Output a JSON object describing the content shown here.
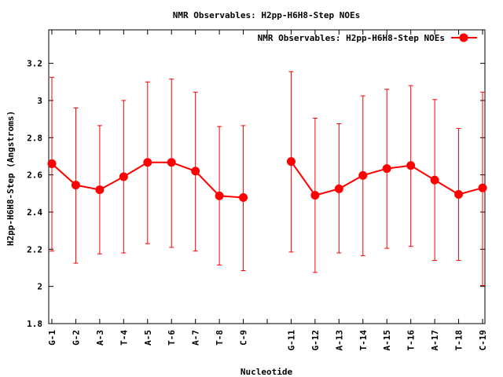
{
  "chart_data": {
    "type": "line",
    "title": "NMR Observables: H2pp-H6H8-Step NOEs",
    "xlabel": "Nucleotide",
    "ylabel": "H2pp-H6H8-Step (Angstroms)",
    "ylim": [
      1.8,
      3.38
    ],
    "yticks": [
      "1.8",
      "2",
      "2.2",
      "2.4",
      "2.6",
      "2.8",
      "3",
      "3.2"
    ],
    "grid": false,
    "legend_position": "top-right",
    "series_color": "#ff0000",
    "categories": [
      "G-1",
      "G-2",
      "A-3",
      "T-4",
      "A-5",
      "T-6",
      "A-7",
      "T-8",
      "C-9",
      "",
      "G-11",
      "G-12",
      "A-13",
      "T-14",
      "A-15",
      "T-16",
      "A-17",
      "T-18",
      "C-19"
    ],
    "series": [
      {
        "name": "NMR Observables: H2pp-H6H8-Step NOEs",
        "values": [
          2.66,
          2.545,
          2.52,
          2.59,
          2.667,
          2.667,
          2.62,
          2.487,
          2.478,
          null,
          2.672,
          2.49,
          2.525,
          2.597,
          2.634,
          2.65,
          2.572,
          2.495,
          2.53
        ],
        "error_low": [
          2.19,
          2.125,
          2.175,
          2.18,
          2.23,
          2.21,
          2.19,
          2.115,
          2.085,
          null,
          2.185,
          2.075,
          2.18,
          2.165,
          2.205,
          2.215,
          2.14,
          2.14,
          2.005
        ],
        "error_high": [
          3.125,
          2.96,
          2.865,
          3.0,
          3.1,
          3.115,
          3.045,
          2.86,
          2.865,
          null,
          3.155,
          2.905,
          2.875,
          3.025,
          3.06,
          3.08,
          3.005,
          2.85,
          3.045
        ]
      }
    ]
  }
}
